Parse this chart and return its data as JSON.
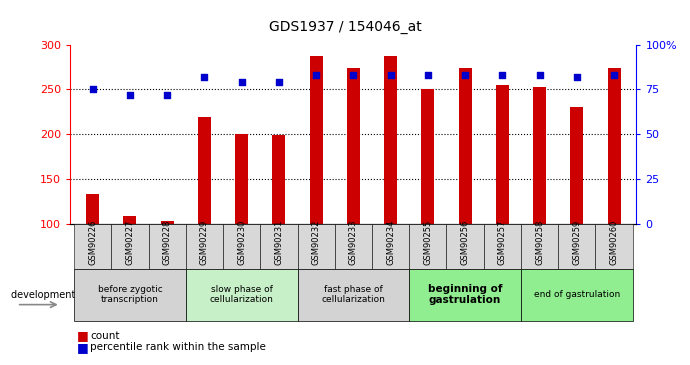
{
  "title": "GDS1937 / 154046_at",
  "samples": [
    "GSM90226",
    "GSM90227",
    "GSM90228",
    "GSM90229",
    "GSM90230",
    "GSM90231",
    "GSM90232",
    "GSM90233",
    "GSM90234",
    "GSM90255",
    "GSM90256",
    "GSM90257",
    "GSM90258",
    "GSM90259",
    "GSM90260"
  ],
  "counts": [
    133,
    109,
    103,
    219,
    200,
    199,
    287,
    274,
    287,
    250,
    274,
    255,
    253,
    230,
    274
  ],
  "percentiles": [
    75,
    72,
    72,
    82,
    79,
    79,
    83,
    83,
    83,
    83,
    83,
    83,
    83,
    82,
    83
  ],
  "stages": [
    {
      "label": "before zygotic\ntranscription",
      "samples": [
        "GSM90226",
        "GSM90227",
        "GSM90228"
      ],
      "color": "#d3d3d3",
      "bold": false
    },
    {
      "label": "slow phase of\ncellularization",
      "samples": [
        "GSM90229",
        "GSM90230",
        "GSM90231"
      ],
      "color": "#c8f0c8",
      "bold": false
    },
    {
      "label": "fast phase of\ncellularization",
      "samples": [
        "GSM90232",
        "GSM90233",
        "GSM90234"
      ],
      "color": "#d3d3d3",
      "bold": false
    },
    {
      "label": "beginning of\ngastrulation",
      "samples": [
        "GSM90255",
        "GSM90256",
        "GSM90257"
      ],
      "color": "#90ee90",
      "bold": true
    },
    {
      "label": "end of gastrulation",
      "samples": [
        "GSM90258",
        "GSM90259",
        "GSM90260"
      ],
      "color": "#90ee90",
      "bold": false
    }
  ],
  "ylim_left": [
    100,
    300
  ],
  "ylim_right": [
    0,
    100
  ],
  "yticks_left": [
    100,
    150,
    200,
    250,
    300
  ],
  "yticks_right": [
    0,
    25,
    50,
    75,
    100
  ],
  "ytick_labels_right": [
    "0",
    "25",
    "50",
    "75",
    "100%"
  ],
  "bar_color": "#cc0000",
  "dot_color": "#0000cc",
  "bar_width": 0.35,
  "dotgrid_ticks": [
    150,
    200,
    250
  ]
}
